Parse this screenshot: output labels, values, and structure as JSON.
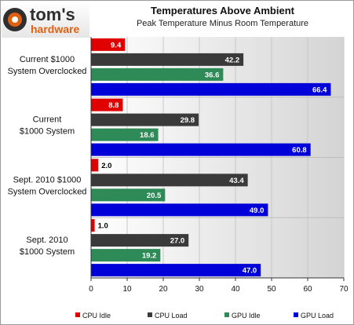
{
  "logo": {
    "line1": "tom's",
    "line2": "hardware"
  },
  "chart_data": {
    "type": "bar",
    "orientation": "horizontal",
    "title": "Temperatures Above Ambient",
    "subtitle": "Peak Temperature Minus Room Temperature",
    "categories": [
      [
        "Current $1000",
        "System Overclocked"
      ],
      [
        "Current",
        "$1000 System"
      ],
      [
        "Sept. 2010 $1000",
        "System Overclocked"
      ],
      [
        "Sept. 2010",
        "$1000 System"
      ]
    ],
    "series": [
      {
        "name": "CPU Idle",
        "color": "#e00000",
        "values": [
          9.4,
          8.8,
          2.0,
          1.0
        ],
        "labels": [
          "9.4",
          "8.8",
          "2.0",
          "1.0"
        ]
      },
      {
        "name": "CPU Load",
        "color": "#3a3a3a",
        "values": [
          42.2,
          29.8,
          43.4,
          27.0
        ],
        "labels": [
          "42.2",
          "29.8",
          "43.4",
          "27.0"
        ]
      },
      {
        "name": "GPU Idle",
        "color": "#2e8b57",
        "values": [
          36.6,
          18.6,
          20.5,
          19.2
        ],
        "labels": [
          "36.6",
          "18.6",
          "20.5",
          "19.2"
        ]
      },
      {
        "name": "GPU Load",
        "color": "#0000d8",
        "values": [
          66.4,
          60.8,
          49.0,
          47.0
        ],
        "labels": [
          "66.4",
          "60.8",
          "49.0",
          "47.0"
        ]
      }
    ],
    "xlim": [
      0,
      70
    ],
    "xticks": [
      0,
      10,
      20,
      30,
      40,
      50,
      60,
      70
    ],
    "xtick_labels": [
      "0",
      "10",
      "20",
      "30",
      "40",
      "50",
      "60",
      "70"
    ],
    "grid": true,
    "legend_position": "bottom"
  }
}
